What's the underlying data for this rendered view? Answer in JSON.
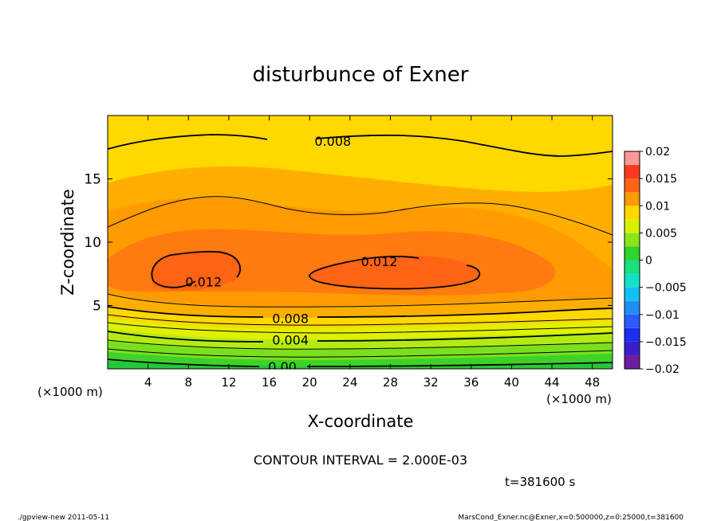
{
  "chart_data": {
    "type": "contour",
    "title": "disturbunce of Exner",
    "xlabel": "X-coordinate",
    "ylabel": "Z-coordinate",
    "xunit_left": "(×1000 m)",
    "xunit_right": "(×1000 m)",
    "xlim": [
      0,
      50
    ],
    "ylim": [
      0,
      20
    ],
    "xticks": [
      {
        "v": 4,
        "label": "4"
      },
      {
        "v": 8,
        "label": "8"
      },
      {
        "v": 12,
        "label": "12"
      },
      {
        "v": 16,
        "label": "16"
      },
      {
        "v": 20,
        "label": "20"
      },
      {
        "v": 24,
        "label": "24"
      },
      {
        "v": 28,
        "label": "28"
      },
      {
        "v": 32,
        "label": "32"
      },
      {
        "v": 36,
        "label": "36"
      },
      {
        "v": 40,
        "label": "40"
      },
      {
        "v": 44,
        "label": "44"
      },
      {
        "v": 48,
        "label": "48"
      }
    ],
    "yticks": [
      {
        "v": 5,
        "label": "5"
      },
      {
        "v": 10,
        "label": "10"
      },
      {
        "v": 15,
        "label": "15"
      }
    ],
    "contour_interval_text": "CONTOUR INTERVAL = 2.000E-03",
    "time_text": "t=381600 s",
    "colorbar": {
      "min": -0.02,
      "max": 0.02,
      "ticks": [
        {
          "v": 0.02,
          "label": "0.02"
        },
        {
          "v": 0.015,
          "label": "0.015"
        },
        {
          "v": 0.01,
          "label": "0.01"
        },
        {
          "v": 0.005,
          "label": "0.005"
        },
        {
          "v": 0,
          "label": "0"
        },
        {
          "v": -0.005,
          "label": "−0.005"
        },
        {
          "v": -0.01,
          "label": "−0.01"
        },
        {
          "v": -0.015,
          "label": "−0.015"
        },
        {
          "v": -0.02,
          "label": "−0.02"
        }
      ],
      "levels": [
        {
          "from": -0.02,
          "to": -0.0175,
          "color": "#6c1f9c"
        },
        {
          "from": -0.0175,
          "to": -0.015,
          "color": "#3a1fc8"
        },
        {
          "from": -0.015,
          "to": -0.0125,
          "color": "#1c2ef0"
        },
        {
          "from": -0.0125,
          "to": -0.01,
          "color": "#2a5cff"
        },
        {
          "from": -0.01,
          "to": -0.0075,
          "color": "#1f8ff5"
        },
        {
          "from": -0.0075,
          "to": -0.005,
          "color": "#14bff0"
        },
        {
          "from": -0.005,
          "to": -0.0025,
          "color": "#14e0c8"
        },
        {
          "from": -0.0025,
          "to": 0,
          "color": "#19e07a"
        },
        {
          "from": 0,
          "to": 0.0025,
          "color": "#2ed52a"
        },
        {
          "from": 0.0025,
          "to": 0.005,
          "color": "#8ae51a"
        },
        {
          "from": 0.005,
          "to": 0.0075,
          "color": "#d8f000"
        },
        {
          "from": 0.0075,
          "to": 0.01,
          "color": "#ffd800"
        },
        {
          "from": 0.01,
          "to": 0.0125,
          "color": "#ff9a00"
        },
        {
          "from": 0.0125,
          "to": 0.015,
          "color": "#ff6414"
        },
        {
          "from": 0.015,
          "to": 0.0175,
          "color": "#ff3a1e"
        },
        {
          "from": 0.0175,
          "to": 0.02,
          "color": "#ff9999"
        }
      ]
    },
    "contour_labels": [
      {
        "text": "0.008",
        "x": 22.3,
        "y": 18.0
      },
      {
        "text": "0.012",
        "x": 26.9,
        "y": 8.5
      },
      {
        "text": "0.012",
        "x": 9.5,
        "y": 6.9
      },
      {
        "text": "0.008",
        "x": 18.1,
        "y": 4.0
      },
      {
        "text": "0.004",
        "x": 18.1,
        "y": 2.3
      },
      {
        "text": "0.00",
        "x": 17.3,
        "y": 0.2
      }
    ]
  },
  "footer": {
    "left": "./gpview-new   2011-05-11",
    "right": "MarsCond_Exner.nc@Exner,x=0:500000,z=0:25000,t=381600"
  }
}
